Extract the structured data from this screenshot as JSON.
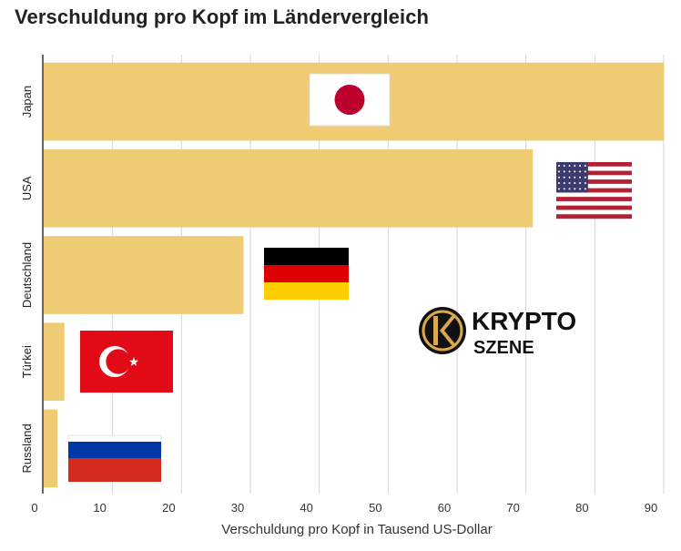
{
  "chart_data": {
    "type": "bar",
    "orientation": "horizontal",
    "title": "Verschuldung pro Kopf im Ländervergleich",
    "xlabel": "Verschuldung pro Kopf in Tausend US-Dollar",
    "ylabel": "",
    "categories": [
      "Japan",
      "USA",
      "Deutschland",
      "Türkei",
      "Russland"
    ],
    "values": [
      90,
      71,
      29,
      3,
      2
    ],
    "xlim": [
      0,
      90
    ],
    "xticks": [
      "0",
      "10",
      "20",
      "30",
      "40",
      "50",
      "60",
      "70",
      "80",
      "90"
    ],
    "grid": true,
    "bar_color": "#EFCB73",
    "flags": [
      "japan-flag-icon",
      "usa-flag-icon",
      "germany-flag-icon",
      "turkey-flag-icon",
      "russia-flag-icon"
    ]
  },
  "logo": {
    "line1": "KRYPTO",
    "line2": "SZENE"
  }
}
